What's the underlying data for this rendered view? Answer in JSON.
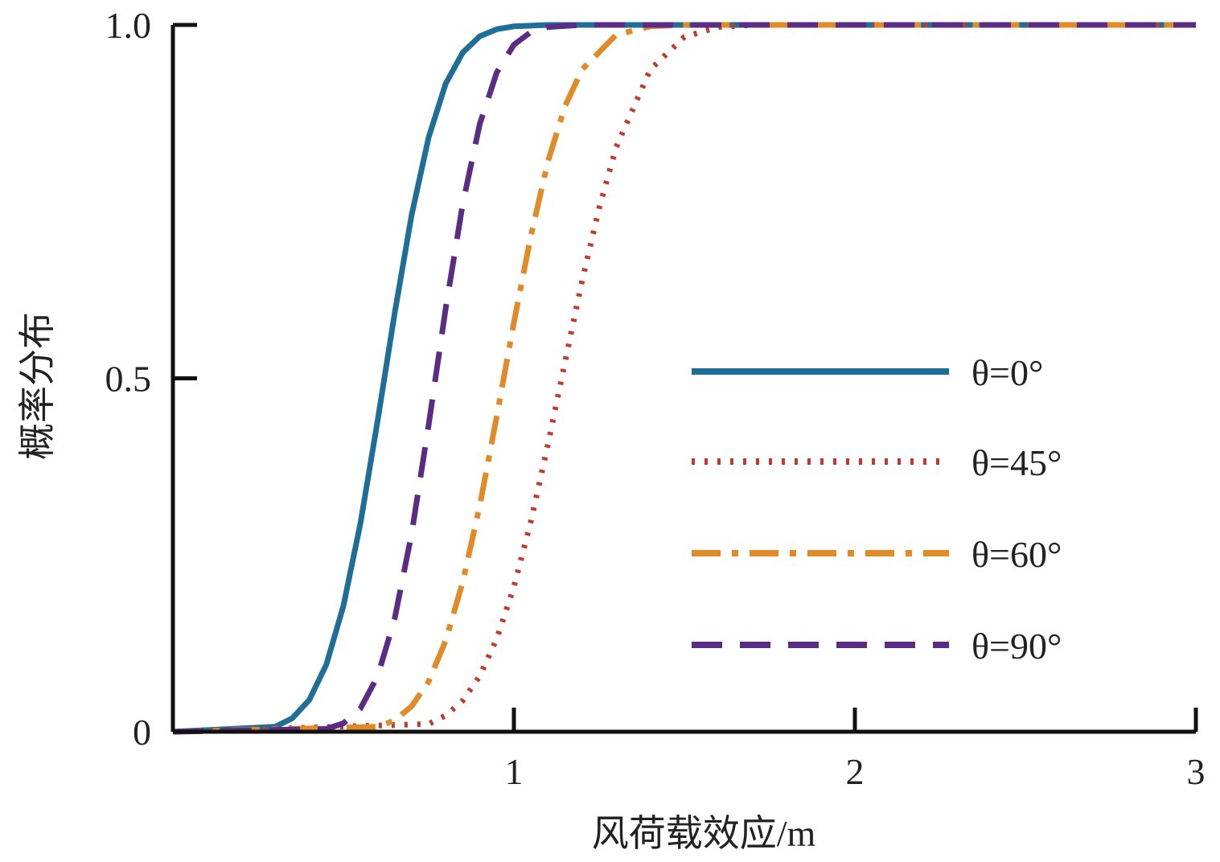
{
  "chart_data": {
    "type": "line",
    "title": "",
    "xlabel": "风荷载效应/m",
    "ylabel": "概率分布",
    "xlim": [
      0,
      3
    ],
    "ylim": [
      0,
      1
    ],
    "xticks": [
      "1",
      "2",
      "3"
    ],
    "yticks": [
      "0",
      "0.5",
      "1.0"
    ],
    "xtick_values": [
      1,
      2,
      3
    ],
    "ytick_values": [
      0,
      0.5,
      1.0
    ],
    "grid": false,
    "legend_position": "right",
    "series": [
      {
        "name": "θ=0°",
        "style": "solid",
        "color": "#1f6e98",
        "x": [
          0,
          0.3,
          0.35,
          0.4,
          0.45,
          0.5,
          0.55,
          0.6,
          0.65,
          0.7,
          0.75,
          0.8,
          0.85,
          0.9,
          0.95,
          1.0,
          1.1,
          3
        ],
        "y": [
          0,
          0.007,
          0.019,
          0.045,
          0.095,
          0.178,
          0.295,
          0.439,
          0.591,
          0.731,
          0.841,
          0.917,
          0.961,
          0.984,
          0.994,
          0.998,
          1.0,
          1.0
        ]
      },
      {
        "name": "θ=45°",
        "style": "dotted",
        "color": "#c23a2e",
        "x": [
          0,
          0.75,
          0.8,
          0.85,
          0.9,
          0.95,
          1.0,
          1.05,
          1.1,
          1.15,
          1.2,
          1.25,
          1.3,
          1.4,
          1.5,
          1.6,
          1.7,
          3
        ],
        "y": [
          0,
          0.011,
          0.023,
          0.044,
          0.079,
          0.132,
          0.205,
          0.298,
          0.407,
          0.523,
          0.638,
          0.741,
          0.827,
          0.937,
          0.983,
          0.997,
          1.0,
          1.0
        ]
      },
      {
        "name": "θ=60°",
        "style": "dashdot",
        "color": "#e08a28",
        "x": [
          0,
          0.6,
          0.65,
          0.7,
          0.75,
          0.8,
          0.85,
          0.9,
          0.95,
          1.0,
          1.05,
          1.1,
          1.15,
          1.2,
          1.3,
          1.4,
          1.5,
          3
        ],
        "y": [
          0,
          0.007,
          0.016,
          0.036,
          0.071,
          0.129,
          0.212,
          0.32,
          0.447,
          0.579,
          0.702,
          0.807,
          0.885,
          0.937,
          0.986,
          0.998,
          1.0,
          1.0
        ]
      },
      {
        "name": "θ=90°",
        "style": "dashed",
        "color": "#5b2c83",
        "x": [
          0,
          0.45,
          0.5,
          0.55,
          0.6,
          0.65,
          0.7,
          0.75,
          0.8,
          0.85,
          0.9,
          0.95,
          1.0,
          1.05,
          1.1,
          1.2,
          3
        ],
        "y": [
          0,
          0.004,
          0.012,
          0.033,
          0.078,
          0.159,
          0.28,
          0.434,
          0.599,
          0.747,
          0.86,
          0.933,
          0.972,
          0.99,
          0.997,
          1.0,
          1.0
        ]
      }
    ]
  }
}
